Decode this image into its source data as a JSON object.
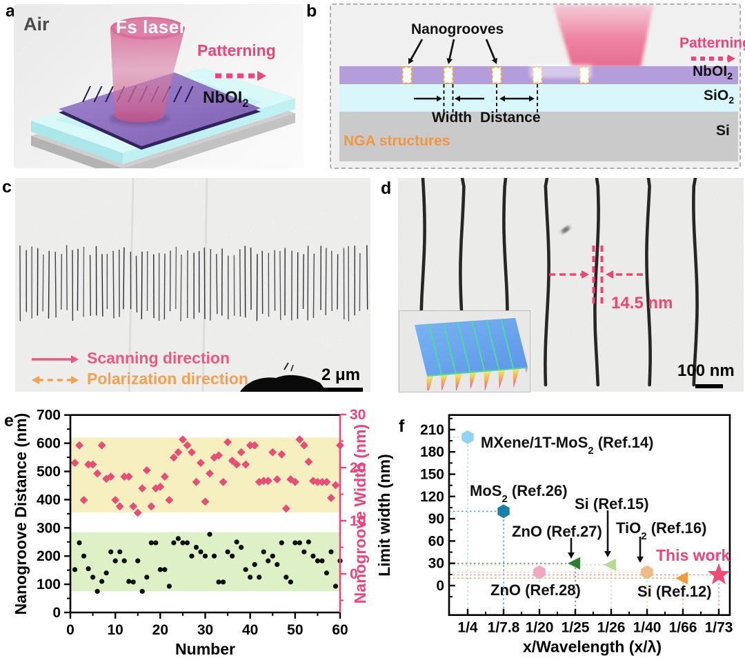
{
  "panels": {
    "a": "a",
    "b": "b",
    "c": "c",
    "d": "d",
    "e": "e",
    "f": "f"
  },
  "colors": {
    "accent_pink": "#f0437a",
    "scan_pink": "#f2557f",
    "polar_orange": "#f5a14e",
    "groove_border_orange": "#f5a81e",
    "nga_orange": "#f5953c",
    "yellow_band": "#f6f0c0",
    "green_band": "#def1c6",
    "width_diamond_pink": "#ea4c75",
    "distance_dot_black": "#0d0d0d",
    "right_axis_pink": "#f0437a",
    "nboi2_purple": "#b49ddb",
    "sio2_cyan": "#d9f7fa",
    "si_gray": "#cacaca"
  },
  "panel_a": {
    "env_label": "Air",
    "laser_label": "Fs laser",
    "patterning_label": "Patterning",
    "material": {
      "base": "NbOI",
      "sub": "2"
    }
  },
  "panel_b": {
    "nanogrooves_label": "Nanogrooves",
    "width_label": "Width",
    "distance_label": "Distance",
    "patterning_label": "Patterning",
    "nga_label": "NGA structures",
    "layers": [
      {
        "base": "NbOI",
        "sub": "2"
      },
      {
        "base": "SiO",
        "sub": "2"
      },
      {
        "base": "Si",
        "sub": ""
      }
    ]
  },
  "panel_c": {
    "scanning_label": "Scanning direction",
    "polarization_label": "Polarization direction",
    "scalebar_label": "2 μm"
  },
  "panel_d": {
    "measurement_label": "14.5 nm",
    "scalebar_label": "100 nm"
  },
  "chart_data": [
    {
      "id": "panel_e",
      "type": "scatter",
      "title": "",
      "xlabel": "Number",
      "ylabel_left": "Nanogroove Distance (nm)",
      "ylabel_right": "Nanogroove Width (nm)",
      "xlim": [
        0,
        60
      ],
      "xticks": [
        0,
        10,
        20,
        30,
        40,
        50,
        60
      ],
      "ylim_left": [
        0,
        700
      ],
      "yticks_left": [
        0,
        100,
        200,
        300,
        400,
        500,
        600,
        700
      ],
      "ylim_right": [
        -7.3,
        30.3
      ],
      "yticks_right": [
        0,
        10,
        20,
        30
      ],
      "grid": false,
      "legend": "none",
      "bands": [
        {
          "axis": "left",
          "from": 355,
          "to": 620,
          "color": "#f6f0c0"
        },
        {
          "axis": "left",
          "from": 75,
          "to": 285,
          "color": "#def1c6"
        }
      ],
      "series": [
        {
          "name": "Nanogroove Distance",
          "axis": "left",
          "marker": "circle",
          "color": "#0d0d0d",
          "x": [
            1,
            2,
            3,
            4,
            5,
            6,
            7,
            8,
            9,
            10,
            11,
            12,
            13,
            14,
            15,
            16,
            17,
            18,
            19,
            20,
            21,
            22,
            23,
            24,
            25,
            26,
            27,
            28,
            29,
            30,
            31,
            32,
            33,
            34,
            35,
            36,
            37,
            38,
            39,
            40,
            41,
            42,
            43,
            44,
            45,
            46,
            47,
            48,
            49,
            50,
            51,
            52,
            53,
            54,
            55,
            56,
            57,
            58,
            59,
            60
          ],
          "y": [
            152,
            247,
            200,
            155,
            125,
            75,
            110,
            140,
            215,
            183,
            215,
            183,
            110,
            108,
            183,
            75,
            125,
            247,
            247,
            152,
            152,
            93,
            247,
            262,
            247,
            247,
            200,
            231,
            215,
            200,
            277,
            200,
            108,
            108,
            215,
            200,
            250,
            231,
            152,
            125,
            170,
            125,
            215,
            183,
            200,
            170,
            247,
            125,
            108,
            247,
            247,
            215,
            250,
            200,
            183,
            183,
            140,
            215,
            93,
            183
          ]
        },
        {
          "name": "Nanogroove Width",
          "axis": "right",
          "marker": "diamond",
          "color": "#ea4c75",
          "x": [
            1,
            2,
            3,
            4,
            5,
            6,
            7,
            8,
            9,
            10,
            11,
            12,
            13,
            14,
            15,
            16,
            17,
            18,
            19,
            20,
            21,
            22,
            23,
            24,
            25,
            26,
            27,
            28,
            29,
            30,
            31,
            32,
            33,
            34,
            35,
            36,
            37,
            38,
            39,
            40,
            41,
            42,
            43,
            44,
            45,
            46,
            47,
            48,
            49,
            50,
            51,
            52,
            53,
            54,
            55,
            56,
            57,
            58,
            59,
            60
          ],
          "y": [
            20.9,
            24.2,
            13.9,
            20.6,
            20.6,
            18.9,
            24.2,
            17.9,
            18.3,
            13.9,
            12.7,
            18.3,
            18.3,
            12.7,
            11.5,
            16.1,
            19.5,
            12.7,
            16.1,
            16.4,
            18.3,
            13.9,
            21.9,
            22.9,
            25.3,
            24.2,
            22.9,
            17.3,
            20.9,
            13.6,
            18.9,
            21.9,
            22.3,
            17.3,
            24.8,
            21.3,
            20.6,
            22.9,
            20.6,
            24.2,
            24.2,
            17.3,
            17.5,
            17.5,
            22.9,
            17.8,
            22.5,
            12.3,
            17.8,
            17.3,
            25.3,
            24.2,
            21.1,
            17.5,
            17.3,
            17.3,
            17.3,
            14.3,
            16.7,
            24.2
          ]
        }
      ]
    },
    {
      "id": "panel_f",
      "type": "scatter",
      "title": "",
      "xlabel": "x/Wavelength (x/λ)",
      "ylabel": "Limit width (nm)",
      "categories": [
        "1/4",
        "1/7.8",
        "1/20",
        "1/25",
        "1/26",
        "1/40",
        "1/66",
        "1/73"
      ],
      "ylim": [
        -40,
        230
      ],
      "yticks": [
        0,
        30,
        60,
        90,
        120,
        150,
        180,
        210
      ],
      "grid": false,
      "points": [
        {
          "material": "MXene/1T-MoS2",
          "ref": "Ref.14",
          "label_parts": [
            {
              "t": "MXene/1T-MoS"
            },
            {
              "sub": "2"
            },
            {
              "t": "  (Ref.14)"
            }
          ],
          "x": "1/4",
          "y": 200,
          "marker": "hexagon",
          "color": "#8fd4f2",
          "guide_color": "#aadcf5",
          "label_color": "#111111"
        },
        {
          "material": "MoS2",
          "ref": "Ref.26",
          "label_parts": [
            {
              "t": "MoS"
            },
            {
              "sub": "2"
            },
            {
              "t": " (Ref.26)"
            }
          ],
          "x": "1/7.8",
          "y": 100,
          "marker": "hexagon",
          "color": "#1b7fae",
          "guide_color": "#5aa8c8",
          "label_color": "#111111"
        },
        {
          "material": "ZnO",
          "ref": "Ref.28",
          "label_parts": [
            {
              "t": "ZnO (Ref.28)"
            }
          ],
          "x": "1/20",
          "y": 18,
          "marker": "hexagon",
          "color": "#f2a7c3",
          "guide_color": "#f5bcd1",
          "label_color": "#111111"
        },
        {
          "material": "ZnO",
          "ref": "Ref.27",
          "label_parts": [
            {
              "t": "ZnO (Ref.27)"
            }
          ],
          "x": "1/25",
          "y": 30,
          "marker": "triangle-left",
          "color": "#2f7d33",
          "guide_color": "#58a05c",
          "label_color": "#111111"
        },
        {
          "material": "Si",
          "ref": "Ref.15",
          "label_parts": [
            {
              "t": "Si (Ref.15)"
            }
          ],
          "x": "1/26",
          "y": 28,
          "marker": "triangle-left",
          "color": "#b8db91",
          "guide_color": "#c8e3a8",
          "label_color": "#111111"
        },
        {
          "material": "TiO2",
          "ref": "Ref.16",
          "label_parts": [
            {
              "t": "TiO"
            },
            {
              "sub": "2"
            },
            {
              "t": " (Ref.16)"
            }
          ],
          "x": "1/40",
          "y": 18,
          "marker": "hexagon",
          "color": "#f0bd88",
          "guide_color": "#f3cda3",
          "label_color": "#111111"
        },
        {
          "material": "Si",
          "ref": "Ref.12",
          "label_parts": [
            {
              "t": "Si (Ref.12)"
            }
          ],
          "x": "1/66",
          "y": 10,
          "marker": "triangle-left",
          "color": "#f29b38",
          "guide_color": "#f5b262",
          "label_color": "#111111"
        },
        {
          "material": "This work",
          "ref": "",
          "label_parts": [
            {
              "t": "This work"
            }
          ],
          "x": "1/73",
          "y": 14.5,
          "marker": "star",
          "color": "#f04a78",
          "guide_color": "#f58fae",
          "label_color": "#f0437a"
        }
      ]
    }
  ]
}
